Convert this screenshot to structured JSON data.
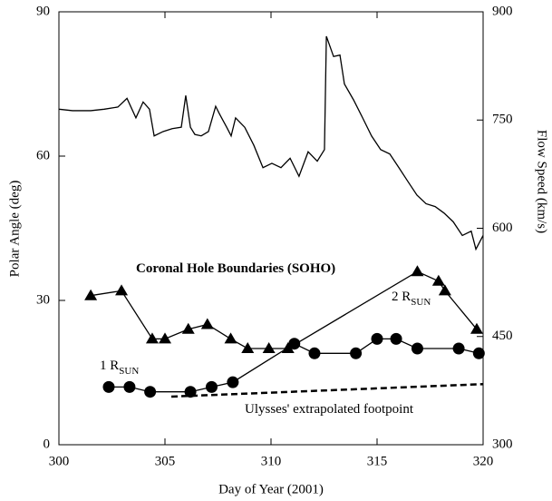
{
  "chart_data": {
    "type": "line",
    "xlabel": "Day of Year (2001)",
    "ylabel": "Polar Angle (deg)",
    "y2label": "Flow Speed (km/s)",
    "xlim": [
      300,
      320
    ],
    "xticks": [
      300,
      305,
      310,
      315,
      320
    ],
    "ylim": [
      0,
      90
    ],
    "yticks": [
      0,
      30,
      60,
      90
    ],
    "y2lim": [
      300,
      900
    ],
    "y2ticks": [
      300,
      450,
      600,
      750,
      900
    ],
    "color": "#000000",
    "series": [
      {
        "axis": "y2",
        "marker": "none",
        "dashed": false,
        "x": [
          300.0,
          300.64,
          301.5,
          302.14,
          302.78,
          303.21,
          303.63,
          303.97,
          304.27,
          304.49,
          304.91,
          305.34,
          305.77,
          305.98,
          306.2,
          306.41,
          306.71,
          307.05,
          307.39,
          307.56,
          307.91,
          308.12,
          308.33,
          308.76,
          309.19,
          309.62,
          310.04,
          310.47,
          310.9,
          311.32,
          311.75,
          312.18,
          312.52,
          312.61,
          312.95,
          313.25,
          313.46,
          313.89,
          314.32,
          314.74,
          315.17,
          315.6,
          316.03,
          316.45,
          316.88,
          317.31,
          317.74,
          318.16,
          318.59,
          319.02,
          319.44,
          319.66,
          320.0
        ],
        "values": [
          765,
          763,
          763,
          765,
          768,
          780,
          753,
          775,
          765,
          728,
          734,
          738,
          740,
          784,
          740,
          730,
          728,
          734,
          769,
          759,
          740,
          728,
          753,
          740,
          715,
          684,
          690,
          684,
          697,
          672,
          706,
          693,
          709,
          866,
          838,
          840,
          800,
          778,
          753,
          728,
          709,
          703,
          684,
          665,
          646,
          634,
          630,
          621,
          609,
          590,
          596,
          571,
          590
        ]
      },
      {
        "axis": "y",
        "marker": "triangle",
        "dashed": false,
        "x": [
          301.5,
          302.95,
          304.4,
          305.0,
          306.1,
          307.0,
          308.1,
          308.9,
          309.9,
          310.8,
          316.9,
          317.9,
          318.2,
          319.7
        ],
        "values": [
          31,
          32,
          22,
          22,
          24,
          25,
          22,
          20,
          20,
          20,
          36,
          34,
          32,
          24
        ]
      },
      {
        "axis": "y",
        "marker": "circle",
        "dashed": false,
        "x": [
          302.35,
          303.33,
          304.3,
          306.2,
          307.2,
          308.2,
          311.1,
          312.05,
          314.0,
          315.0,
          315.9,
          316.9,
          318.85,
          319.8
        ],
        "values": [
          12,
          12,
          11,
          11,
          12,
          13,
          21,
          19,
          19,
          22,
          22,
          20,
          20,
          19
        ]
      },
      {
        "axis": "y",
        "marker": "none",
        "dashed": true,
        "x": [
          305.3,
          320.0
        ],
        "values": [
          10,
          12.6
        ]
      }
    ],
    "annotations": [
      {
        "text": "Coronal Hole Boundaries (SOHO)",
        "bold": true
      },
      {
        "text": "2 R",
        "sub": "SUN"
      },
      {
        "text": "1 R",
        "sub": "SUN"
      },
      {
        "text": "Ulysses' extrapolated footpoint"
      }
    ]
  }
}
